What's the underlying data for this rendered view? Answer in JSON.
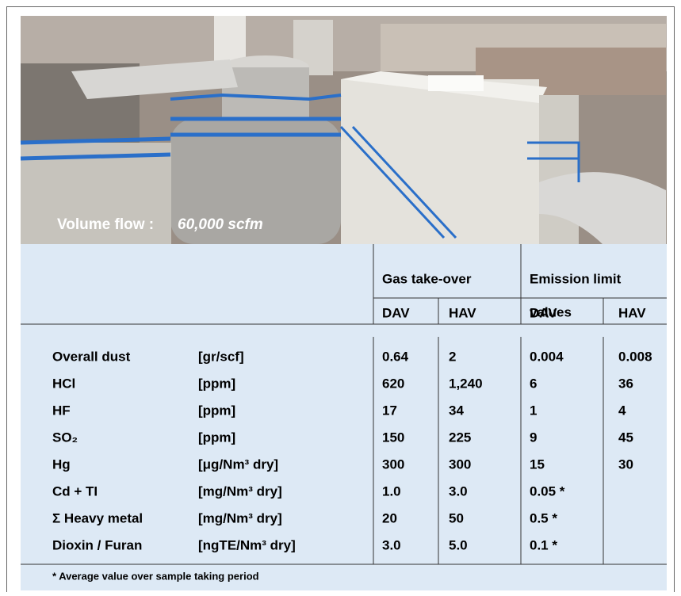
{
  "photo": {
    "caption_label": "Volume flow :",
    "caption_value": "60,000 scfm"
  },
  "table": {
    "group_headers": {
      "gas_takeover": "Gas take-over",
      "emission_limit": [
        "Emission limit",
        "values"
      ]
    },
    "sub_headers": [
      "DAV",
      "HAV",
      "DAV",
      "HAV"
    ],
    "rows": [
      [
        "Overall dust",
        "[gr/scf]",
        "0.64",
        "2",
        "0.004",
        "0.008"
      ],
      [
        "HCl",
        "[ppm]",
        "620",
        "1,240",
        "6",
        "36"
      ],
      [
        "HF",
        "[ppm]",
        "17",
        "34",
        "1",
        "4"
      ],
      [
        "SO₂",
        "[ppm]",
        "150",
        "225",
        "9",
        "45"
      ],
      [
        "Hg",
        "[μg/Nm³ dry]",
        "300",
        "300",
        "15",
        "30"
      ],
      [
        "Cd + TI",
        "[mg/Nm³ dry]",
        "1.0",
        "3.0",
        "0.05 *"
      ],
      [
        "Σ Heavy metal",
        "[mg/Nm³ dry]",
        "20",
        "50",
        "0.5 *"
      ],
      [
        "Dioxin / Furan",
        "[ngTE/Nm³ dry]",
        "3.0",
        "5.0",
        "0.1 *"
      ]
    ],
    "footnote": "* Average value over sample taking period"
  }
}
